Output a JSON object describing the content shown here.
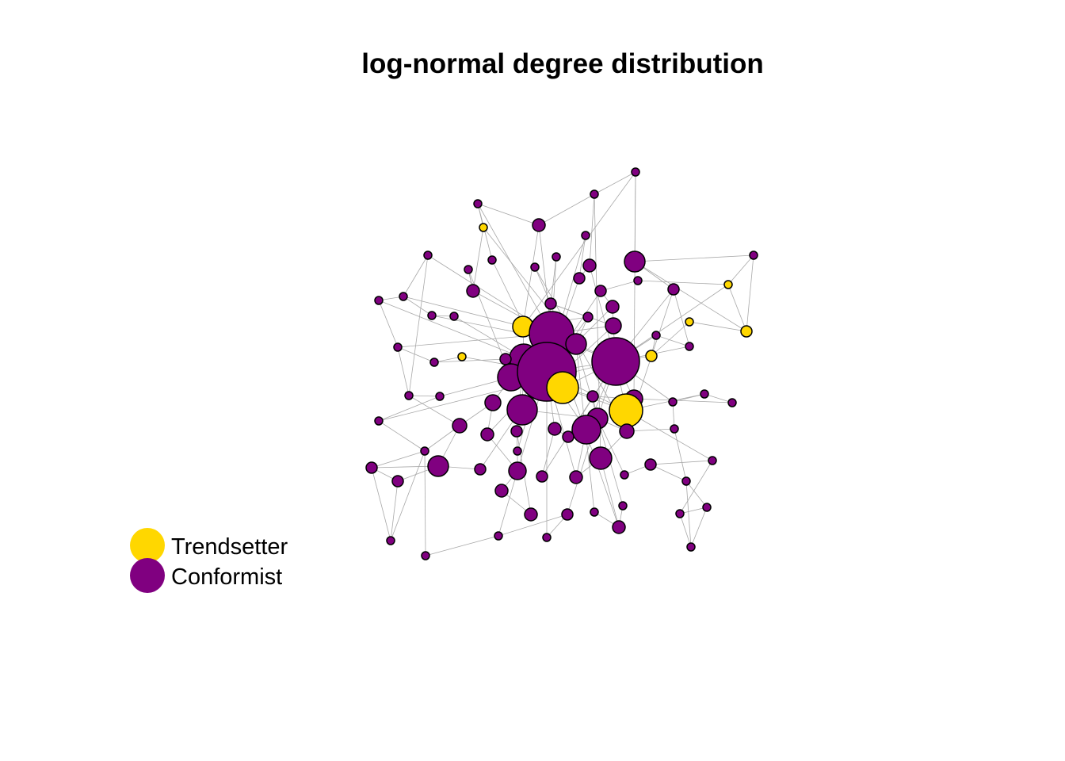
{
  "title": "log-normal degree distribution",
  "legend": [
    {
      "label": "Trendsetter",
      "color": "#FFD700"
    },
    {
      "label": "Conformist",
      "color": "#800080"
    }
  ]
}
